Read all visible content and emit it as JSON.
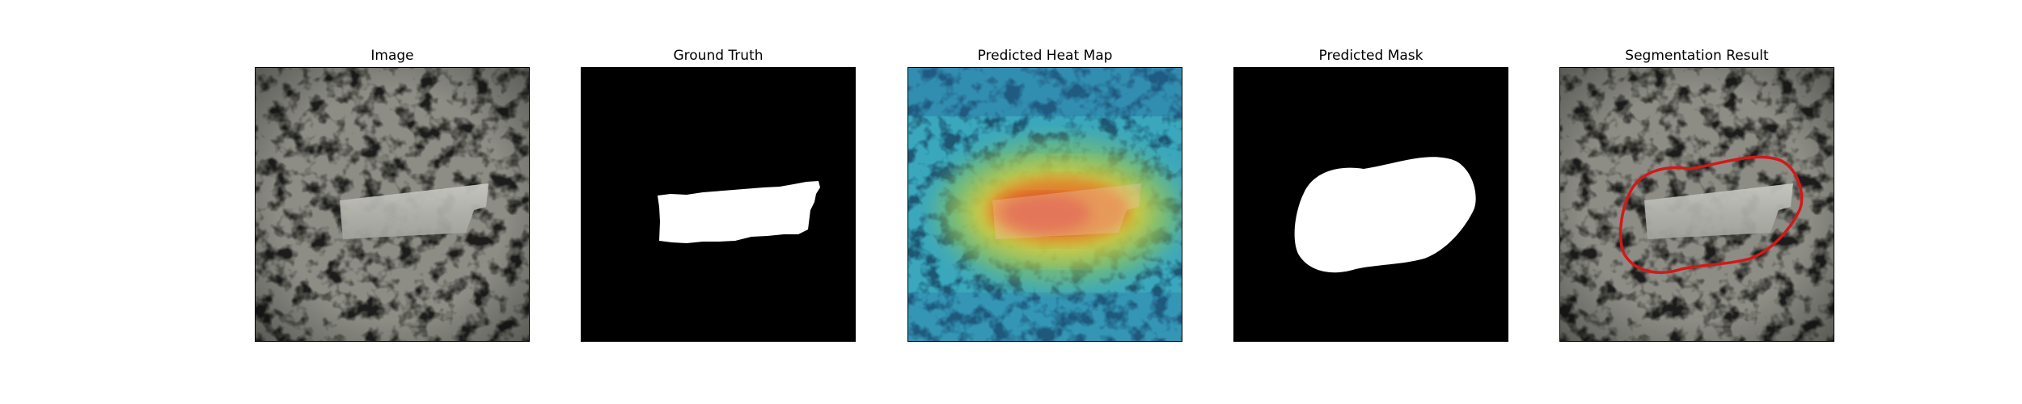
{
  "figure": {
    "panels": [
      {
        "id": "image",
        "title": "Image"
      },
      {
        "id": "ground-truth",
        "title": "Ground Truth"
      },
      {
        "id": "heatmap",
        "title": "Predicted Heat Map"
      },
      {
        "id": "mask",
        "title": "Predicted Mask"
      },
      {
        "id": "segmentation",
        "title": "Segmentation Result"
      }
    ],
    "colors": {
      "texture_base": "#8d8d86",
      "mask_foreground": "#ffffff",
      "mask_background": "#000000",
      "contour": "#d41818"
    }
  }
}
